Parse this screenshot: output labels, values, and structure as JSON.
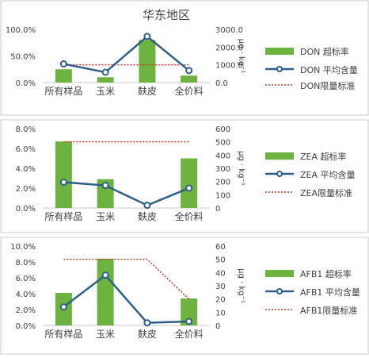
{
  "page_title": "华东地区",
  "colors": {
    "bar": "#6db33f",
    "line": "#2e5f8a",
    "limit": "#c0392b",
    "axis": "#c8c8c8",
    "text": "#404040",
    "panel_border": "#c8c8c8"
  },
  "chart_data": [
    {
      "type": "bar",
      "title": "华东地区",
      "categories": [
        "所有样品",
        "玉米",
        "麸皮",
        "全价料"
      ],
      "ylim_left": [
        0,
        100
      ],
      "yticks_left": [
        "0.0%",
        "50.0%",
        "100.0%"
      ],
      "ylim_right": [
        0,
        3000
      ],
      "yticks_right": [
        "0.0",
        "1000.0",
        "2000.0",
        "3000.0"
      ],
      "right_axis_label": "μg · kg⁻¹",
      "series": [
        {
          "name": "DON 超标率",
          "kind": "bar",
          "axis": "left",
          "values": [
            25,
            10,
            80,
            13
          ]
        },
        {
          "name": "DON 平均含量",
          "kind": "line",
          "axis": "right",
          "values": [
            1050,
            580,
            2600,
            680
          ]
        },
        {
          "name": "DON限量标准",
          "kind": "limit",
          "axis": "right",
          "values": [
            1000,
            1000,
            1000,
            1000
          ]
        }
      ]
    },
    {
      "type": "bar",
      "categories": [
        "所有样品",
        "玉米",
        "麸皮",
        "全价料"
      ],
      "ylim_left": [
        0,
        8
      ],
      "yticks_left": [
        "0.0%",
        "2.0%",
        "4.0%",
        "6.0%",
        "8.0%"
      ],
      "ylim_right": [
        0,
        600
      ],
      "yticks_right": [
        "0",
        "100",
        "200",
        "300",
        "400",
        "500",
        "600"
      ],
      "right_axis_label": "μg · kg⁻¹",
      "series": [
        {
          "name": "ZEA 超标率",
          "kind": "bar",
          "axis": "left",
          "values": [
            6.7,
            2.9,
            0,
            5.0
          ]
        },
        {
          "name": "ZEA 平均含量",
          "kind": "line",
          "axis": "right",
          "values": [
            195,
            170,
            20,
            150
          ]
        },
        {
          "name": "ZEA限量标准",
          "kind": "limit",
          "axis": "right",
          "values": [
            500,
            500,
            500,
            500
          ]
        }
      ]
    },
    {
      "type": "bar",
      "categories": [
        "所有样品",
        "玉米",
        "麸皮",
        "全价料"
      ],
      "ylim_left": [
        0,
        10
      ],
      "yticks_left": [
        "0.0%",
        "2.0%",
        "4.0%",
        "6.0%",
        "8.0%",
        "10.0%"
      ],
      "ylim_right": [
        0,
        60
      ],
      "yticks_right": [
        "0",
        "10",
        "20",
        "30",
        "40",
        "50",
        "60"
      ],
      "right_axis_label": "μg · kg⁻¹",
      "series": [
        {
          "name": "AFB1 超标率",
          "kind": "bar",
          "axis": "left",
          "values": [
            4.1,
            8.4,
            0,
            3.4
          ]
        },
        {
          "name": "AFB1 平均含量",
          "kind": "line",
          "axis": "right",
          "values": [
            14,
            38,
            2,
            3
          ]
        },
        {
          "name": "AFB1限量标准",
          "kind": "limit",
          "axis": "right",
          "values": [
            50,
            50,
            50,
            20
          ]
        }
      ]
    }
  ]
}
